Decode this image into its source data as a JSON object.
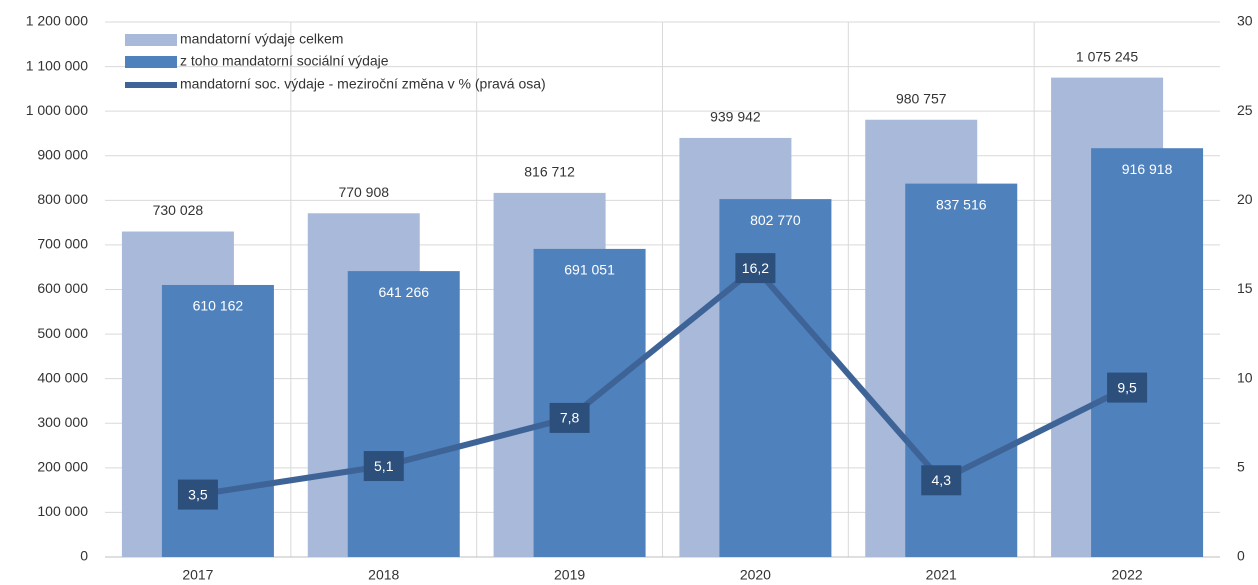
{
  "chart_data": {
    "type": "bar-line",
    "categories": [
      "2017",
      "2018",
      "2019",
      "2020",
      "2021",
      "2022"
    ],
    "series": [
      {
        "name": "mandatorní výdaje celkem",
        "color": "#a9b9d9",
        "values": [
          730028,
          770908,
          816712,
          939942,
          980757,
          1075245
        ],
        "value_labels": [
          "730 028",
          "770 908",
          "816 712",
          "939 942",
          "980 757",
          "1 075 245"
        ]
      },
      {
        "name": "z toho mandatorní sociální výdaje",
        "color": "#4f81bd",
        "values": [
          610162,
          641266,
          691051,
          802770,
          837516,
          916918
        ],
        "value_labels": [
          "610 162",
          "641 266",
          "691 051",
          "802 770",
          "837 516",
          "916 918"
        ]
      },
      {
        "name": "mandatorní soc. výdaje - meziroční změna v % (pravá osa)",
        "color": "#3e6497",
        "axis": "y2",
        "values": [
          3.5,
          5.1,
          7.8,
          16.2,
          4.3,
          9.5
        ],
        "value_labels": [
          "3,5",
          "5,1",
          "7,8",
          "16,2",
          "4,3",
          "9,5"
        ]
      }
    ],
    "ylim": [
      0,
      1200000
    ],
    "yticks": [
      0,
      {
        "value": 100000,
        "label": "100 000"
      },
      {
        "value": 200000,
        "label": "200 000"
      },
      {
        "value": 300000,
        "label": "300 000"
      },
      {
        "value": 400000,
        "label": "400 000"
      },
      {
        "value": 500000,
        "label": "500 000"
      },
      {
        "value": 600000,
        "label": "600 000"
      },
      {
        "value": 700000,
        "label": "700 000"
      },
      {
        "value": 800000,
        "label": "800 000"
      },
      {
        "value": 900000,
        "label": "900 000"
      },
      {
        "value": 1000000,
        "label": "1 000 000"
      },
      {
        "value": 1100000,
        "label": "1 100 000"
      },
      {
        "value": 1200000,
        "label": "1 200 000"
      }
    ],
    "y2lim": [
      0,
      30
    ],
    "y2ticks": [
      0,
      5,
      10,
      15,
      20,
      25,
      30
    ],
    "grid": true
  }
}
